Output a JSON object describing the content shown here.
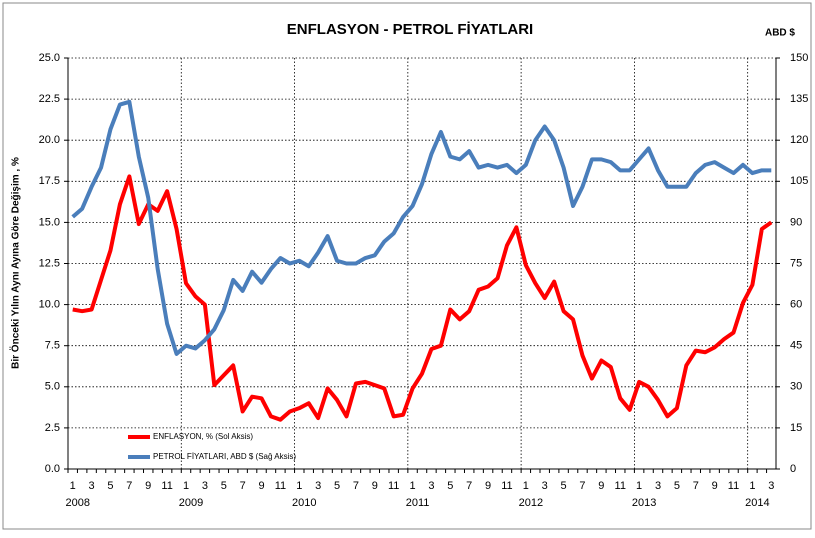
{
  "chart_data": {
    "type": "line",
    "title": "ENFLASYON - PETROL FİYATLARI",
    "y_label": "Bir Önceki Yılın Aynı Ayına Göre Değişim , %",
    "y2_label": "ABD $",
    "categories": [
      "1",
      null,
      "3",
      null,
      "5",
      null,
      "7",
      null,
      "9",
      null,
      "11",
      null,
      "1",
      null,
      "3",
      null,
      "5",
      null,
      "7",
      null,
      "9",
      null,
      "11",
      null,
      "1",
      null,
      "3",
      null,
      "5",
      null,
      "7",
      null,
      "9",
      null,
      "11",
      null,
      "1",
      null,
      "3",
      null,
      "5",
      null,
      "7",
      null,
      "9",
      null,
      "11",
      null,
      "1",
      null,
      "3",
      null,
      "5",
      null,
      "7",
      null,
      "9",
      null,
      "11",
      null,
      "1",
      null,
      "3",
      null,
      "5",
      null,
      "7",
      null,
      "9",
      null,
      "11",
      null,
      "1",
      null,
      "3"
    ],
    "years": [
      "2008",
      "2009",
      "2010",
      "2011",
      "2012",
      "2013",
      "2014"
    ],
    "series": [
      {
        "name": "ENFLASYON, % (Sol Aksis)",
        "color": "#ff0000",
        "axis": "y",
        "values": [
          9.7,
          9.6,
          9.7,
          11.5,
          13.3,
          16.1,
          17.8,
          14.9,
          16.1,
          15.7,
          16.9,
          14.6,
          11.3,
          10.5,
          10.0,
          5.1,
          5.7,
          6.3,
          3.5,
          4.4,
          4.3,
          3.2,
          3.0,
          3.5,
          3.7,
          4.0,
          3.1,
          4.9,
          4.2,
          3.2,
          5.2,
          5.3,
          5.1,
          4.9,
          3.2,
          3.3,
          4.9,
          5.8,
          7.3,
          7.5,
          9.7,
          9.1,
          9.6,
          10.9,
          11.1,
          11.6,
          13.6,
          14.7,
          12.4,
          11.3,
          10.4,
          11.4,
          9.6,
          9.1,
          6.9,
          5.5,
          6.6,
          6.2,
          4.3,
          3.6,
          5.3,
          5.0,
          4.2,
          3.2,
          3.7,
          6.3,
          7.2,
          7.1,
          7.4,
          7.9,
          8.3,
          10.1,
          11.2,
          14.6,
          15.0
        ]
      },
      {
        "name": "PETROL FİYATLARI, ABD $ (Sağ Aksis)",
        "color": "#4a7ebb",
        "axis": "y2",
        "values": [
          92,
          95,
          103,
          110,
          124,
          133,
          134,
          114,
          99,
          73,
          53,
          42,
          45,
          44,
          47,
          51,
          58,
          69,
          65,
          72,
          68,
          73,
          77,
          75,
          76,
          74,
          79,
          85,
          76,
          75,
          75,
          77,
          78,
          83,
          86,
          92,
          96,
          104,
          115,
          123,
          114,
          113,
          116,
          110,
          111,
          110,
          111,
          108,
          111,
          120,
          125,
          120,
          110,
          96,
          103,
          113,
          113,
          112,
          109,
          109,
          113,
          117,
          109,
          103,
          103,
          103,
          108,
          111,
          112,
          110,
          108,
          111,
          108,
          109,
          109
        ]
      }
    ],
    "ylim": [
      0,
      25
    ],
    "yticks": [
      {
        "value": 0,
        "label": "0.0"
      },
      2.5,
      {
        "value": 5,
        "label": "5.0"
      },
      7.5,
      {
        "value": 10,
        "label": "10.0"
      },
      12.5,
      {
        "value": 15,
        "label": "15.0"
      },
      17.5,
      {
        "value": 20,
        "label": "20.0"
      },
      22.5,
      {
        "value": 25,
        "label": "25.0"
      }
    ],
    "y2lim": [
      0,
      150
    ],
    "y2ticks": [
      0,
      15,
      30,
      45,
      60,
      75,
      90,
      105,
      120,
      135,
      150
    ],
    "grid": true
  }
}
